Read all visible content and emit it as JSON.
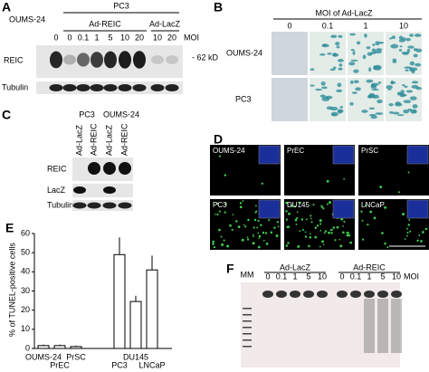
{
  "panel_a": {
    "label": "A",
    "group": "PC3",
    "control": "OUMS-24",
    "treatments": [
      "Ad-REIC",
      "Ad-LacZ"
    ],
    "lanes": [
      "0",
      "0",
      "0.1",
      "1",
      "5",
      "10",
      "20",
      "10",
      "20"
    ],
    "moi": "MOI",
    "rows": [
      "REIC",
      "Tubulin"
    ],
    "marker": "- 62 kD"
  },
  "panel_b": {
    "label": "B",
    "title": "MOI of Ad-LacZ",
    "columns": [
      "0",
      "0.1",
      "1",
      "10"
    ],
    "rows": [
      "OUMS-24",
      "PC3"
    ]
  },
  "panel_c": {
    "label": "C",
    "groups": [
      "PC3",
      "OUMS-24"
    ],
    "lanes": [
      "Ad-LacZ",
      "Ad-REIC",
      "Ad-LacZ",
      "Ad-REIC"
    ],
    "rows": [
      "REIC",
      "LacZ",
      "Tubulin"
    ]
  },
  "panel_d": {
    "label": "D",
    "cells": [
      "OUMS-24",
      "PrEC",
      "PrSC",
      "PC3",
      "DU145",
      "LNCaP"
    ]
  },
  "panel_e": {
    "label": "E"
  },
  "chart_data": {
    "type": "bar",
    "ylabel": "% of TUNEL-positive cells",
    "categories": [
      "OUMS-24",
      "PrEC",
      "PrSC",
      "PC3",
      "DU145",
      "LNCaP"
    ],
    "values": [
      1.5,
      1.5,
      1,
      49,
      24.5,
      41
    ],
    "errors": [
      0.5,
      0.5,
      0.5,
      9,
      3,
      7.5
    ],
    "color": "#ffffff",
    "ylim": [
      0,
      60
    ],
    "yticks": [
      0,
      10,
      20,
      30,
      40,
      50,
      60
    ]
  },
  "panel_f": {
    "label": "F",
    "marker": "MM",
    "groups": [
      "Ad-LacZ",
      "Ad-REIC"
    ],
    "lanes": [
      "0",
      "0.1",
      "1",
      "5",
      "10",
      "0",
      "0.1",
      "1",
      "5",
      "10"
    ],
    "moi": "MOI"
  }
}
